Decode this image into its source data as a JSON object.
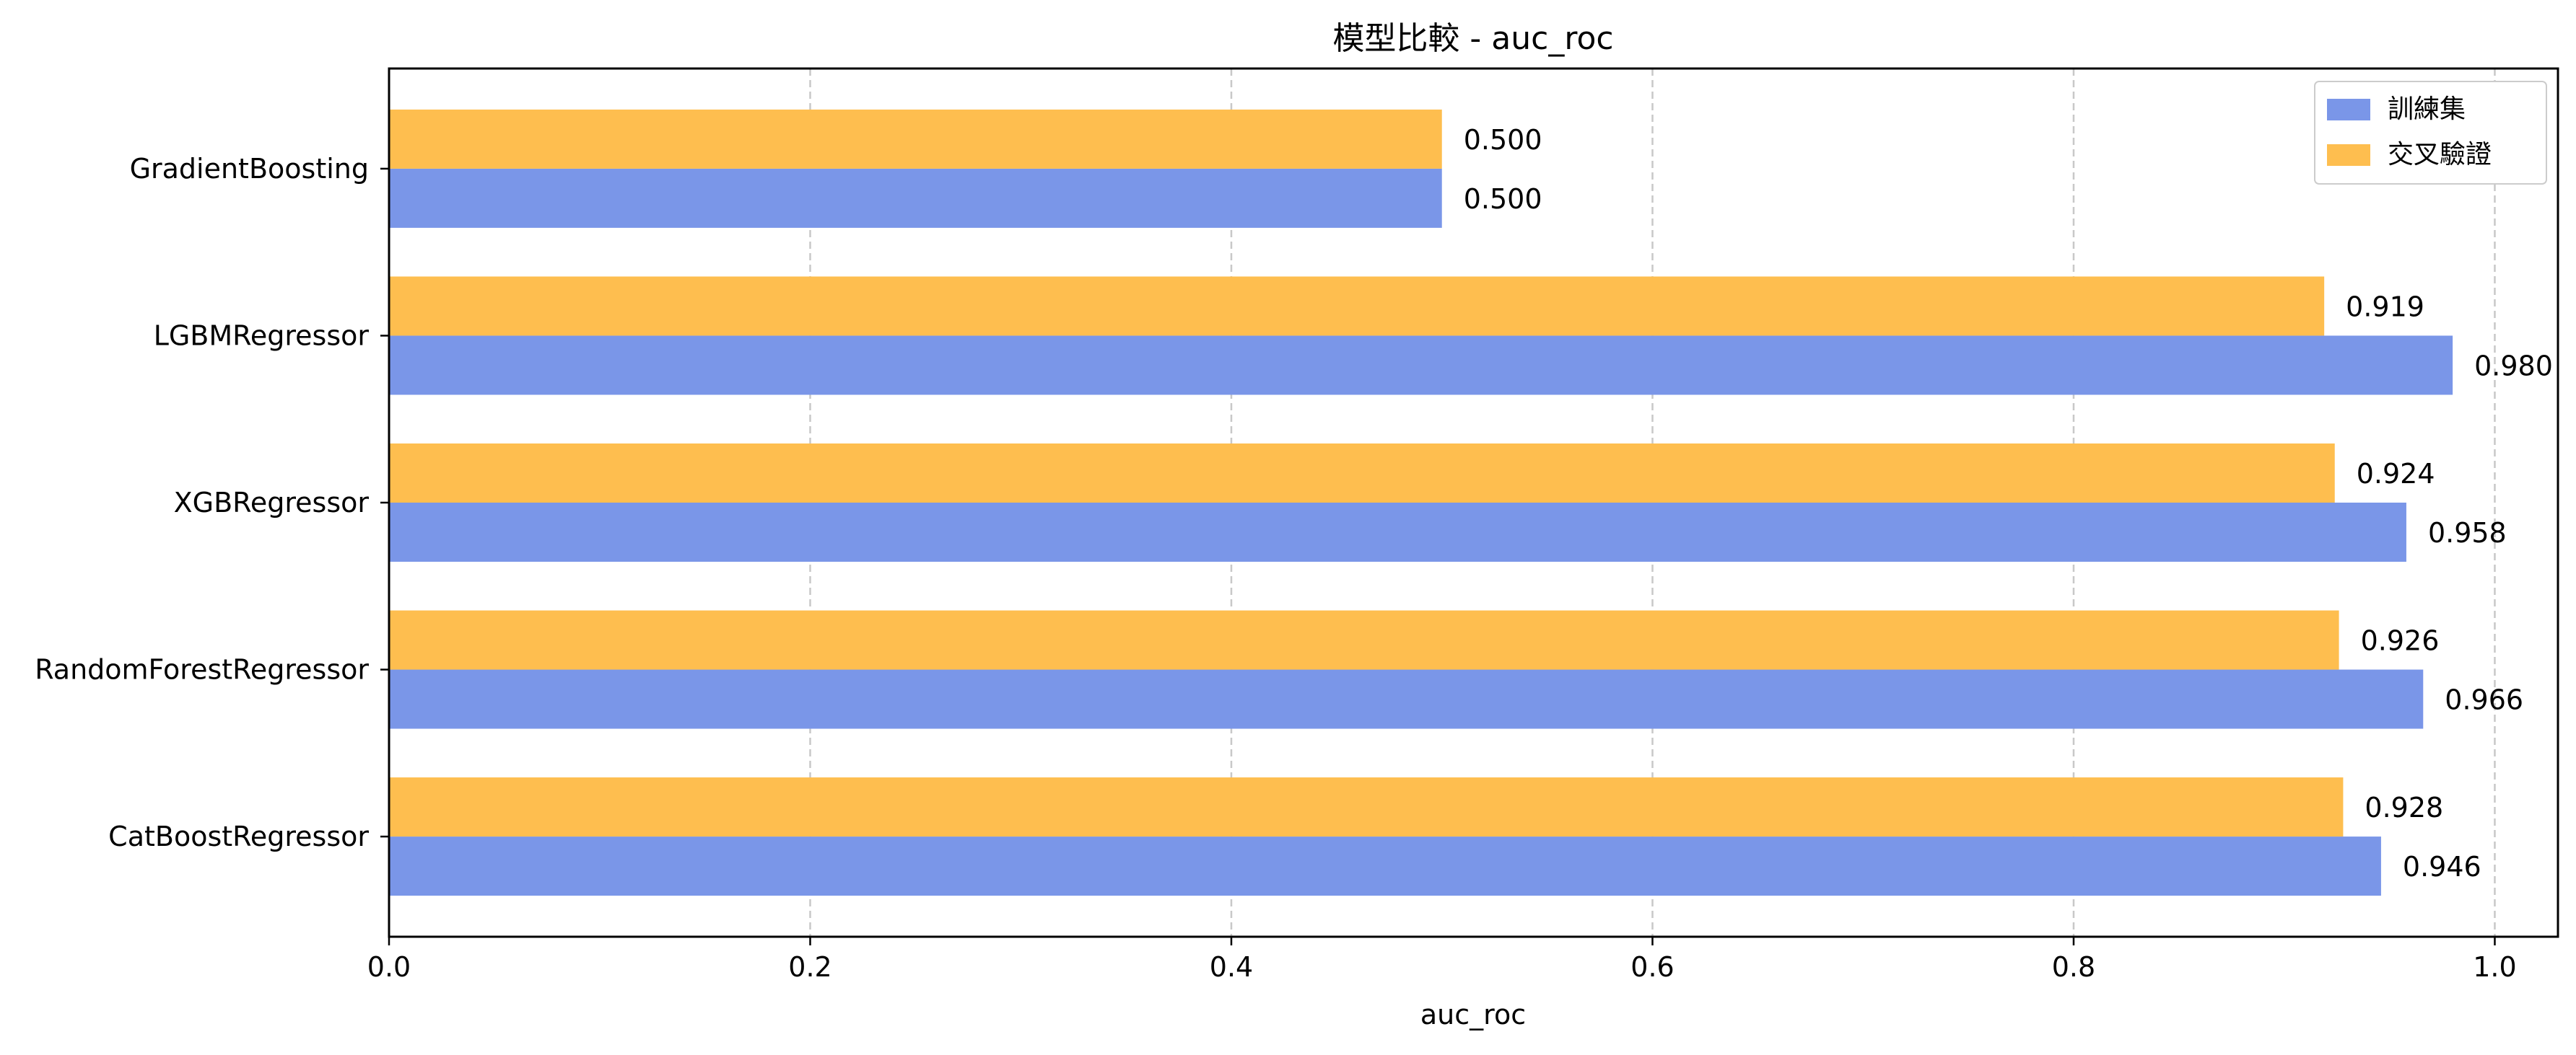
{
  "chart_data": {
    "type": "bar",
    "orientation": "horizontal",
    "title": "模型比較 - auc_roc",
    "xlabel": "auc_roc",
    "ylabel": "",
    "categories": [
      "GradientBoosting",
      "LGBMRegressor",
      "XGBRegressor",
      "RandomForestRegressor",
      "CatBoostRegressor"
    ],
    "series": [
      {
        "name": "訓練集",
        "color": "#7a96e8",
        "values": [
          0.5,
          0.98,
          0.958,
          0.966,
          0.946
        ],
        "labels": [
          "0.500",
          "0.980",
          "0.958",
          "0.966",
          "0.946"
        ]
      },
      {
        "name": "交叉驗證",
        "color": "#febe4f",
        "values": [
          0.5,
          0.919,
          0.924,
          0.926,
          0.928
        ],
        "labels": [
          "0.500",
          "0.919",
          "0.924",
          "0.926",
          "0.928"
        ]
      }
    ],
    "xlim": [
      0.0,
      1.03
    ],
    "xticks": [
      0.0,
      0.2,
      0.4,
      0.6,
      0.8,
      1.0
    ],
    "xtick_labels": [
      "0.0",
      "0.2",
      "0.4",
      "0.6",
      "0.8",
      "1.0"
    ],
    "grid": "vertical-dashed",
    "legend_position": "top-right"
  }
}
